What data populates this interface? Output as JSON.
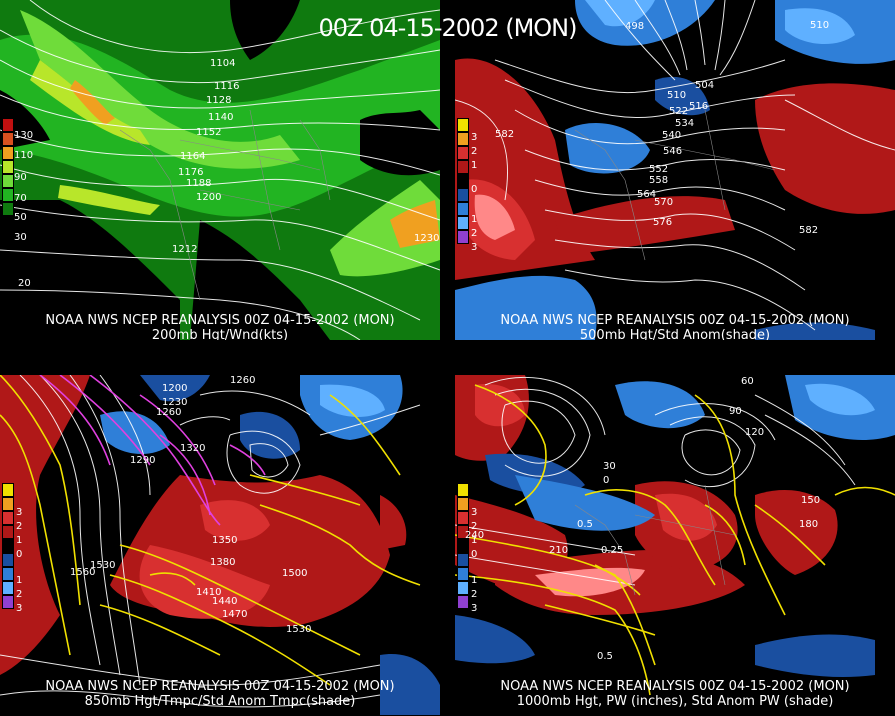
{
  "header": {
    "title": "00Z 04-15-2002 (MON)"
  },
  "panels": [
    {
      "caption1": "NOAA NWS NCEP REANALYSIS 00Z 04-15-2002 (MON)",
      "caption2": "200mb Hgt/Wnd(kts)",
      "legend_labels": [
        "130",
        "110",
        "90",
        "70",
        "50",
        "30",
        "20"
      ],
      "contour_labels": [
        "1104",
        "1116",
        "1128",
        "1140",
        "1152",
        "1164",
        "1176",
        "1188",
        "1200",
        "1212",
        "1230"
      ]
    },
    {
      "caption1": "NOAA NWS NCEP REANALYSIS 00Z 04-15-2002 (MON)",
      "caption2": "500mb Hgt/Std Anom(shade)",
      "legend_labels": [
        "3",
        "2",
        "1",
        "0",
        "1",
        "2",
        "3"
      ],
      "contour_labels": [
        "582",
        "504",
        "510",
        "516",
        "522",
        "534",
        "540",
        "546",
        "552",
        "558",
        "564",
        "570",
        "576",
        "582",
        "510",
        "498"
      ]
    },
    {
      "caption1": "NOAA NWS NCEP REANALYSIS 00Z 04-15-2002 (MON)",
      "caption2": "850mb Hgt/Tmpc/Std Anom Tmpc(shade)",
      "legend_labels": [
        "3",
        "2",
        "1",
        "0",
        "1",
        "2",
        "3"
      ],
      "contour_labels": [
        "1200",
        "1230",
        "1260",
        "1260",
        "1290",
        "1320",
        "1350",
        "1380",
        "1410",
        "1440",
        "1470",
        "1500",
        "1530",
        "1560",
        "1530"
      ]
    },
    {
      "caption1": "NOAA NWS NCEP REANALYSIS 00Z 04-15-2002 (MON)",
      "caption2": "1000mb Hgt, PW (inches), Std Anom PW (shade)",
      "legend_labels": [
        "3",
        "2",
        "1",
        "0",
        "1",
        "2",
        "3"
      ],
      "contour_labels": [
        "60",
        "90",
        "120",
        "150",
        "180",
        "210",
        "240",
        "30",
        "0",
        "0.5",
        "0.25",
        "0.5"
      ]
    }
  ],
  "colors": {
    "green_dark": "#0f7a0f",
    "green_mid": "#22b422",
    "green_light": "#6fdc3a",
    "yellow_green": "#b8e62a",
    "orange": "#f0a020",
    "red_dark": "#b01818",
    "red_mid": "#d83030",
    "pink": "#ff8888",
    "blue_dark": "#1a4fa0",
    "blue_mid": "#2f7fd8",
    "blue_light": "#5fb0ff",
    "yellow_line": "#f0e000",
    "magenta_line": "#e040e0"
  }
}
